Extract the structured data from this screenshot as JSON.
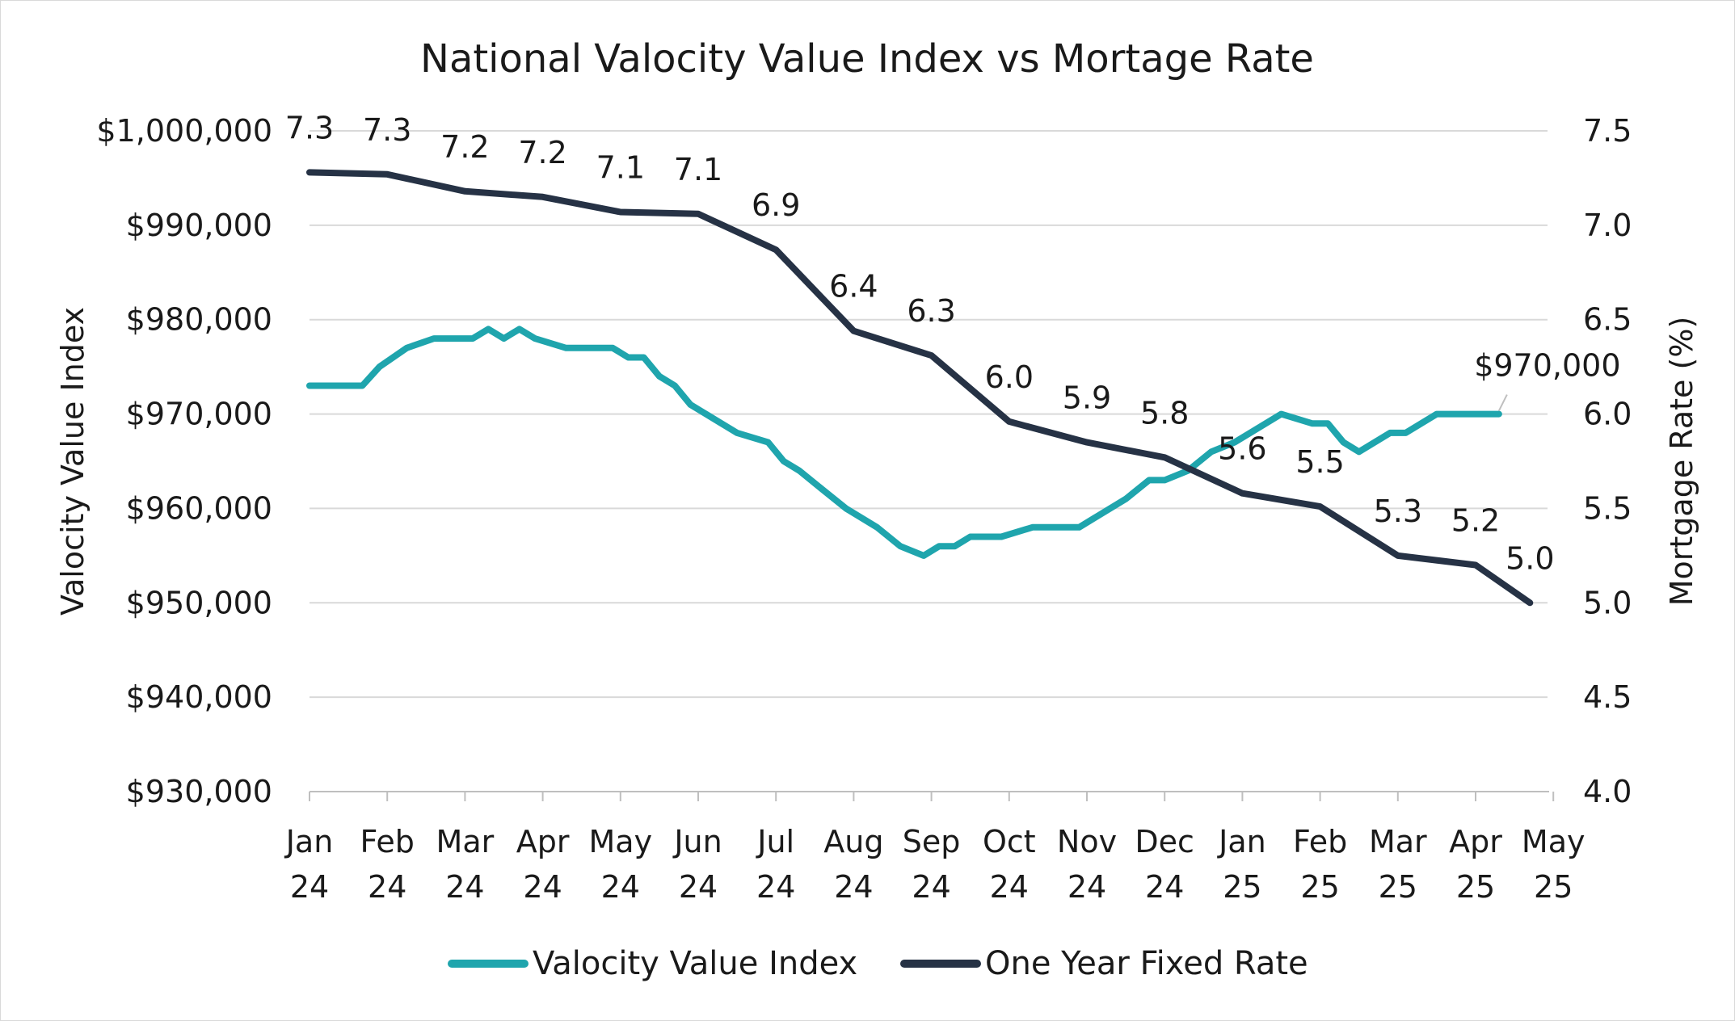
{
  "chart_data": {
    "type": "line",
    "title": "National Valocity Value Index vs Mortage Rate",
    "y_left_label": "Valocity Value Index",
    "y_right_label": "Mortgage Rate (%)",
    "y_left_ticks": [
      "$930,000",
      "$940,000",
      "$950,000",
      "$960,000",
      "$970,000",
      "$980,000",
      "$990,000",
      "$1,000,000"
    ],
    "y_left_range": [
      930000,
      1000000
    ],
    "y_right_ticks": [
      "4.0",
      "4.5",
      "5.0",
      "5.5",
      "6.0",
      "6.5",
      "7.0",
      "7.5"
    ],
    "y_right_range": [
      4.0,
      7.5
    ],
    "x_range": [
      0,
      16
    ],
    "x_categories": [
      {
        "month": "Jan",
        "year": "24"
      },
      {
        "month": "Feb",
        "year": "24"
      },
      {
        "month": "Mar",
        "year": "24"
      },
      {
        "month": "Apr",
        "year": "24"
      },
      {
        "month": "May",
        "year": "24"
      },
      {
        "month": "Jun",
        "year": "24"
      },
      {
        "month": "Jul",
        "year": "24"
      },
      {
        "month": "Aug",
        "year": "24"
      },
      {
        "month": "Sep",
        "year": "24"
      },
      {
        "month": "Oct",
        "year": "24"
      },
      {
        "month": "Nov",
        "year": "24"
      },
      {
        "month": "Dec",
        "year": "24"
      },
      {
        "month": "Jan",
        "year": "25"
      },
      {
        "month": "Feb",
        "year": "25"
      },
      {
        "month": "Mar",
        "year": "25"
      },
      {
        "month": "Apr",
        "year": "25"
      },
      {
        "month": "May",
        "year": "25"
      }
    ],
    "series": [
      {
        "name": "Valocity Value Index",
        "axis": "left",
        "color": "#1fa5ad",
        "x": [
          0,
          0.68,
          0.9,
          1.25,
          1.6,
          2.1,
          2.3,
          2.5,
          2.7,
          2.9,
          3.3,
          3.6,
          3.9,
          4.1,
          4.3,
          4.5,
          4.7,
          4.9,
          5.1,
          5.5,
          5.9,
          6.1,
          6.3,
          6.6,
          6.9,
          7.3,
          7.6,
          7.9,
          8.1,
          8.3,
          8.5,
          8.8,
          8.9,
          9.3,
          9.5,
          9.9,
          10.1,
          10.5,
          10.8,
          11.0,
          11.3,
          11.6,
          11.9,
          12.1,
          12.5,
          12.9,
          13.1,
          13.3,
          13.5,
          13.9,
          14.1,
          14.5,
          14.9,
          15.3
        ],
        "values": [
          973000,
          973000,
          975000,
          977000,
          978000,
          978000,
          979000,
          978000,
          979000,
          978000,
          977000,
          977000,
          977000,
          976000,
          976000,
          974000,
          973000,
          971000,
          970000,
          968000,
          967000,
          965000,
          964000,
          962000,
          960000,
          958000,
          956000,
          955000,
          956000,
          956000,
          957000,
          957000,
          957000,
          958000,
          958000,
          958000,
          959000,
          961000,
          963000,
          963000,
          964000,
          966000,
          967000,
          968000,
          970000,
          969000,
          969000,
          967000,
          966000,
          968000,
          968000,
          970000,
          970000,
          970000
        ],
        "end_label": "$970,000"
      },
      {
        "name": "One Year Fixed Rate",
        "axis": "right",
        "color": "#263245",
        "x": [
          0,
          1,
          2,
          3,
          4,
          5,
          6,
          7,
          8,
          9,
          10,
          11,
          12,
          13,
          14,
          15,
          15.7
        ],
        "values": [
          7.28,
          7.27,
          7.18,
          7.15,
          7.07,
          7.06,
          6.87,
          6.44,
          6.31,
          5.96,
          5.85,
          5.77,
          5.58,
          5.51,
          5.25,
          5.2,
          5.0
        ],
        "labels": [
          "7.3",
          "7.3",
          "7.2",
          "7.2",
          "7.1",
          "7.1",
          "6.9",
          "6.4",
          "6.3",
          "6.0",
          "5.9",
          "5.8",
          "5.6",
          "5.5",
          "5.3",
          "5.2",
          "5.0"
        ]
      }
    ],
    "legend": {
      "position": "bottom",
      "items": [
        "Valocity Value Index",
        "One Year Fixed Rate"
      ]
    }
  }
}
